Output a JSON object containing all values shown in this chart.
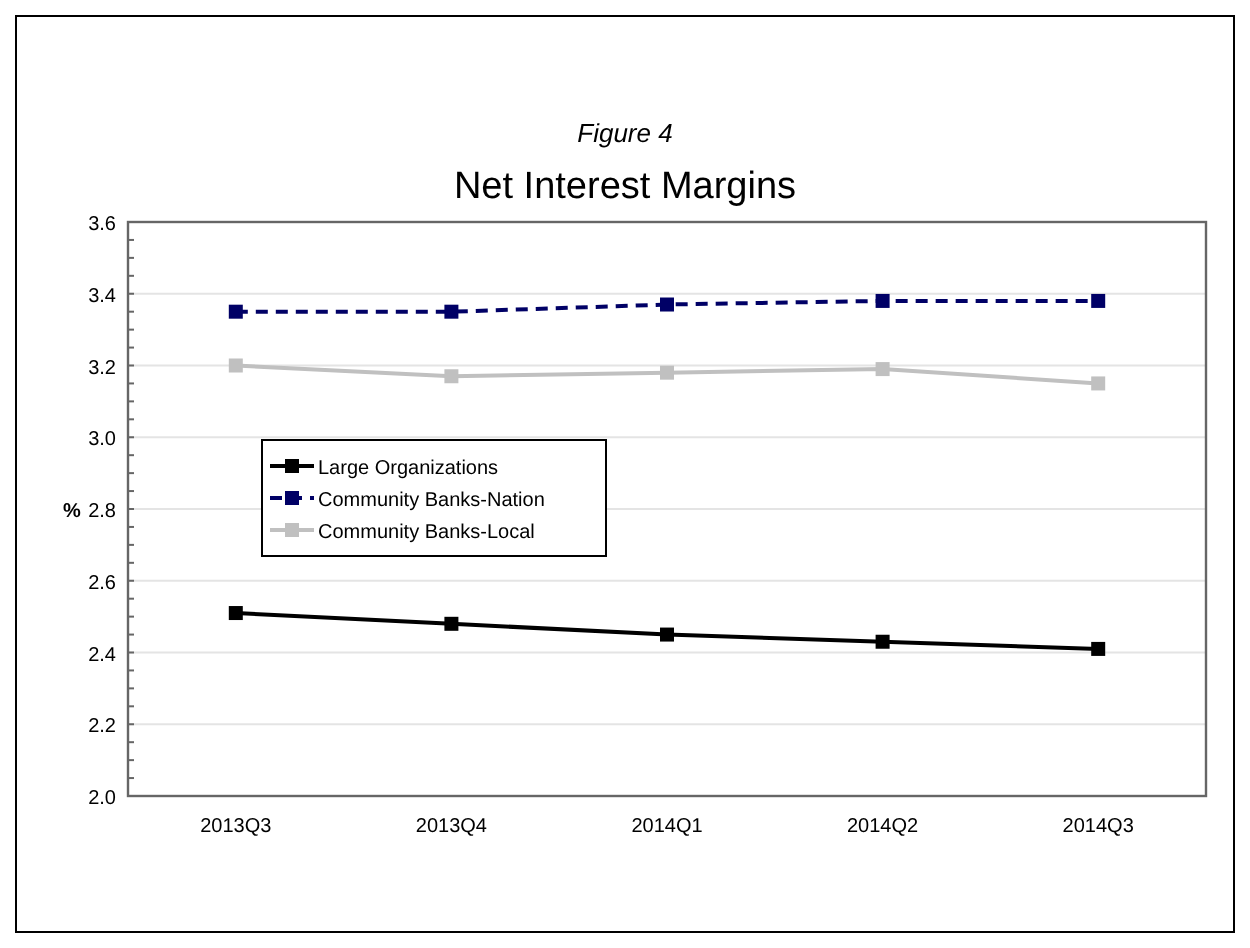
{
  "chart_data": {
    "type": "line",
    "title": "Net Interest Margins",
    "subtitle": "Figure 4",
    "ylabel": "%",
    "categories": [
      "2013Q3",
      "2013Q4",
      "2014Q1",
      "2014Q2",
      "2014Q3"
    ],
    "series": [
      {
        "name": "Large Organizations",
        "color": "#000000",
        "values": [
          2.51,
          2.48,
          2.45,
          2.43,
          2.41
        ],
        "line_style": "solid"
      },
      {
        "name": "Community Banks-Nation",
        "color": "#000066",
        "values": [
          3.35,
          3.35,
          3.37,
          3.38,
          3.38
        ],
        "line_style": "dashed"
      },
      {
        "name": "Community Banks-Local",
        "color": "#c0c0c0",
        "values": [
          3.2,
          3.17,
          3.18,
          3.19,
          3.15
        ],
        "line_style": "solid"
      }
    ],
    "ylim": [
      2.0,
      3.6
    ],
    "yticks": [
      {
        "value": 2.0,
        "label": "2.0"
      },
      2.2,
      2.4,
      2.6,
      2.8,
      {
        "value": 3.0,
        "label": "3.0"
      },
      3.2,
      3.4,
      3.6
    ],
    "grid": "y",
    "legend": "left",
    "marker": "square"
  }
}
